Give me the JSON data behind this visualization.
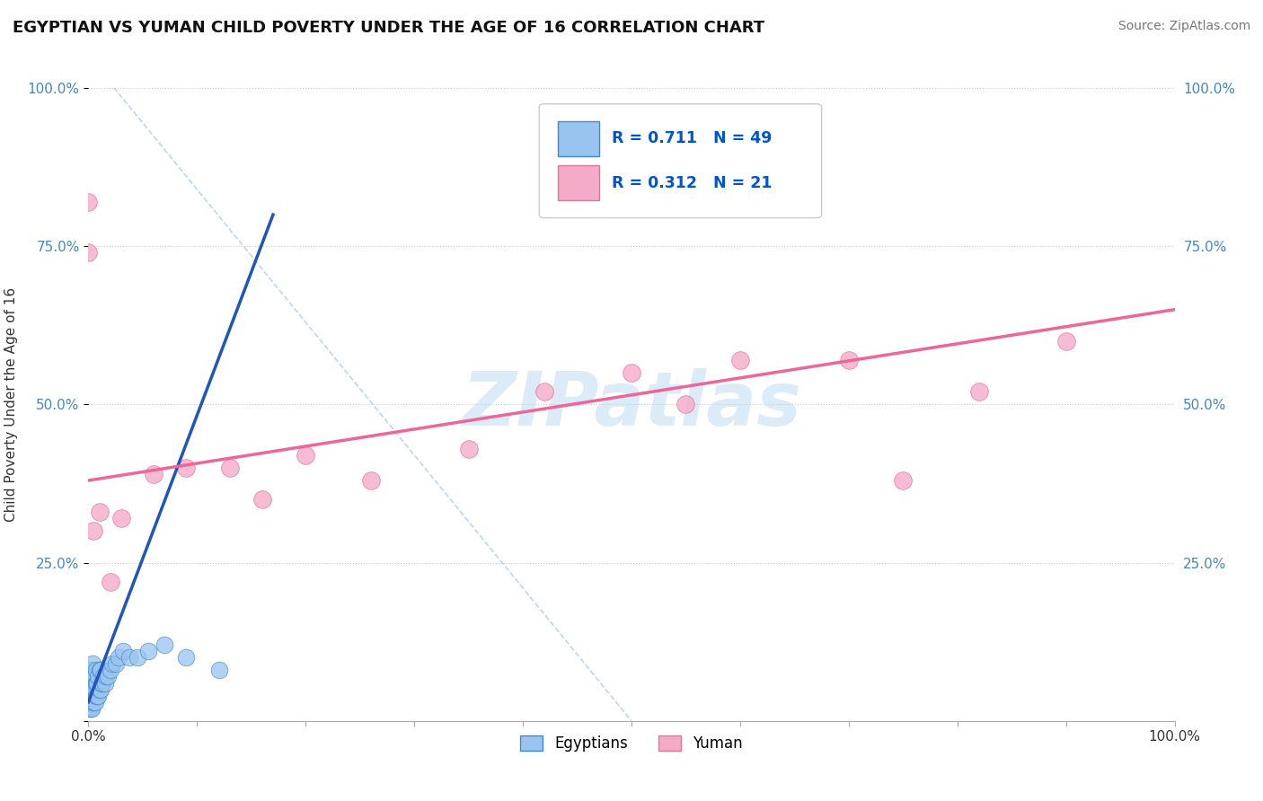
{
  "title": "EGYPTIAN VS YUMAN CHILD POVERTY UNDER THE AGE OF 16 CORRELATION CHART",
  "source": "Source: ZipAtlas.com",
  "xlabel": "",
  "ylabel": "Child Poverty Under the Age of 16",
  "xlim": [
    0,
    1
  ],
  "ylim": [
    0,
    1
  ],
  "background_color": "#ffffff",
  "grid_color": "#cccccc",
  "watermark": "ZIPatlas",
  "watermark_color": "#b8d8f0",
  "egyptians_color": "#99c4f0",
  "egyptians_edge": "#4488cc",
  "yuman_color": "#f5aac8",
  "yuman_edge": "#dd7799",
  "egyptians_R": 0.711,
  "egyptians_N": 49,
  "yuman_R": 0.312,
  "yuman_N": 21,
  "legend_R_color": "#0055cc",
  "egyptians_line_color": "#2255bb",
  "yuman_line_color": "#ee6699",
  "diag_line_color": "#aaccee",
  "egyptians_line_x0": 0.0,
  "egyptians_line_y0": 0.03,
  "egyptians_line_x1": 0.17,
  "egyptians_line_y1": 0.8,
  "yuman_line_x0": 0.0,
  "yuman_line_y0": 0.38,
  "yuman_line_x1": 1.0,
  "yuman_line_y1": 0.65,
  "egyptians_x": [
    0.001,
    0.001,
    0.001,
    0.002,
    0.002,
    0.002,
    0.002,
    0.003,
    0.003,
    0.003,
    0.003,
    0.004,
    0.004,
    0.004,
    0.004,
    0.005,
    0.005,
    0.005,
    0.006,
    0.006,
    0.006,
    0.007,
    0.007,
    0.007,
    0.008,
    0.008,
    0.009,
    0.009,
    0.01,
    0.01,
    0.011,
    0.011,
    0.012,
    0.013,
    0.014,
    0.015,
    0.016,
    0.018,
    0.02,
    0.022,
    0.025,
    0.028,
    0.032,
    0.038,
    0.045,
    0.055,
    0.07,
    0.09,
    0.12
  ],
  "egyptians_y": [
    0.02,
    0.04,
    0.06,
    0.02,
    0.04,
    0.06,
    0.08,
    0.02,
    0.04,
    0.06,
    0.08,
    0.03,
    0.05,
    0.07,
    0.09,
    0.03,
    0.05,
    0.07,
    0.03,
    0.05,
    0.07,
    0.04,
    0.06,
    0.08,
    0.04,
    0.06,
    0.04,
    0.07,
    0.05,
    0.08,
    0.05,
    0.08,
    0.06,
    0.06,
    0.07,
    0.06,
    0.07,
    0.07,
    0.08,
    0.09,
    0.09,
    0.1,
    0.11,
    0.1,
    0.1,
    0.11,
    0.12,
    0.1,
    0.08
  ],
  "yuman_x": [
    0.0,
    0.0,
    0.005,
    0.01,
    0.02,
    0.03,
    0.06,
    0.09,
    0.13,
    0.16,
    0.2,
    0.26,
    0.35,
    0.42,
    0.5,
    0.55,
    0.6,
    0.7,
    0.75,
    0.82,
    0.9
  ],
  "yuman_y": [
    0.74,
    0.82,
    0.3,
    0.33,
    0.22,
    0.32,
    0.39,
    0.4,
    0.4,
    0.35,
    0.42,
    0.38,
    0.43,
    0.52,
    0.55,
    0.5,
    0.57,
    0.57,
    0.38,
    0.52,
    0.6
  ]
}
